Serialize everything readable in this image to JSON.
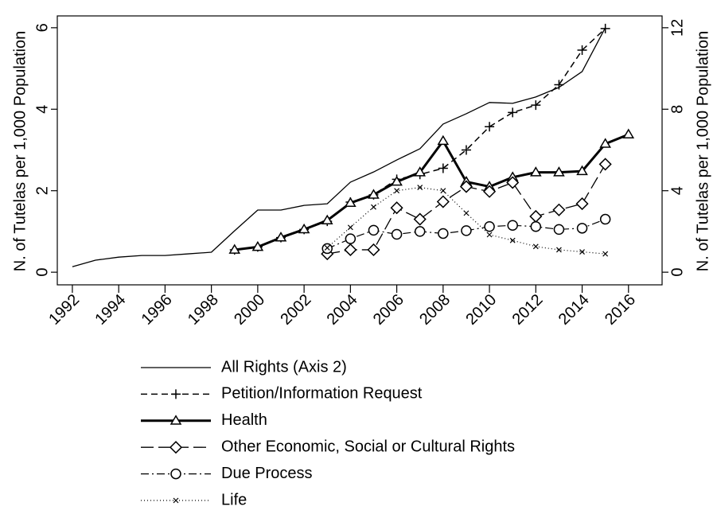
{
  "chart_data": {
    "type": "line",
    "x": [
      1992,
      1993,
      1994,
      1995,
      1996,
      1997,
      1998,
      1999,
      2000,
      2001,
      2002,
      2003,
      2004,
      2005,
      2006,
      2007,
      2008,
      2009,
      2010,
      2011,
      2012,
      2013,
      2014,
      2015,
      2016
    ],
    "xlim": [
      1991.35,
      2017.45
    ],
    "xticks": [
      1992,
      1994,
      1996,
      1998,
      2000,
      2002,
      2004,
      2006,
      2008,
      2010,
      2012,
      2014,
      2016
    ],
    "ylim": [
      -0.31,
      6.29
    ],
    "yticks": [
      0,
      2,
      4,
      6
    ],
    "y2lim": [
      -0.62,
      12.58
    ],
    "y2ticks": [
      0,
      4,
      8,
      12
    ],
    "ylabel": "N. of Tutelas per 1,000 Population",
    "y2label": "N. of Tutelas per 1,000 Population",
    "series": [
      {
        "name": "All Rights (Axis 2)",
        "color": "#000000",
        "axis": "y2",
        "dash": "none",
        "width": 1.3,
        "marker": "none",
        "values": [
          0.27,
          0.59,
          0.74,
          0.82,
          0.82,
          0.9,
          0.98,
          2.03,
          3.05,
          3.05,
          3.28,
          3.36,
          4.42,
          4.92,
          5.51,
          6.06,
          7.27,
          7.78,
          8.33,
          8.29,
          8.6,
          9.07,
          9.85,
          12.0,
          null
        ]
      },
      {
        "name": "Petition/Information Request",
        "color": "#000000",
        "dash": "8,5",
        "width": 1.5,
        "marker": "plus",
        "values": [
          null,
          null,
          null,
          null,
          null,
          null,
          null,
          0.55,
          0.62,
          0.85,
          1.05,
          1.25,
          1.72,
          1.9,
          2.28,
          2.4,
          2.55,
          3.0,
          3.57,
          3.92,
          4.1,
          4.6,
          5.45,
          5.98,
          null
        ]
      },
      {
        "name": "Health",
        "color": "#000000",
        "dash": "none",
        "width": 3,
        "marker": "triangle",
        "values": [
          null,
          null,
          null,
          null,
          null,
          null,
          null,
          0.55,
          0.62,
          0.85,
          1.05,
          1.27,
          1.7,
          1.9,
          2.22,
          2.45,
          3.22,
          2.22,
          2.1,
          2.33,
          2.45,
          2.45,
          2.48,
          3.15,
          3.38
        ]
      },
      {
        "name": "Other Economic, Social or Cultural Rights",
        "color": "#000000",
        "dash": "16,6",
        "width": 1.3,
        "marker": "diamond",
        "values": [
          null,
          null,
          null,
          null,
          null,
          null,
          null,
          null,
          null,
          null,
          null,
          0.45,
          0.55,
          0.55,
          1.58,
          1.3,
          1.73,
          2.1,
          1.98,
          2.2,
          1.37,
          1.53,
          1.68,
          2.65,
          null
        ]
      },
      {
        "name": "Due Process",
        "color": "#000000",
        "dash": "10,4,2,4",
        "width": 1.2,
        "marker": "circle",
        "values": [
          null,
          null,
          null,
          null,
          null,
          null,
          null,
          null,
          null,
          null,
          null,
          0.58,
          0.82,
          1.03,
          0.93,
          1.0,
          0.95,
          1.02,
          1.12,
          1.15,
          1.12,
          1.05,
          1.08,
          1.3,
          null
        ]
      },
      {
        "name": "Life",
        "color": "#000000",
        "dash": "1,3",
        "width": 1.2,
        "marker": "x",
        "values": [
          null,
          null,
          null,
          null,
          null,
          null,
          null,
          null,
          null,
          null,
          null,
          0.6,
          1.1,
          1.6,
          2.0,
          2.08,
          2.0,
          1.45,
          0.92,
          0.78,
          0.63,
          0.55,
          0.5,
          0.45,
          null
        ]
      }
    ]
  }
}
